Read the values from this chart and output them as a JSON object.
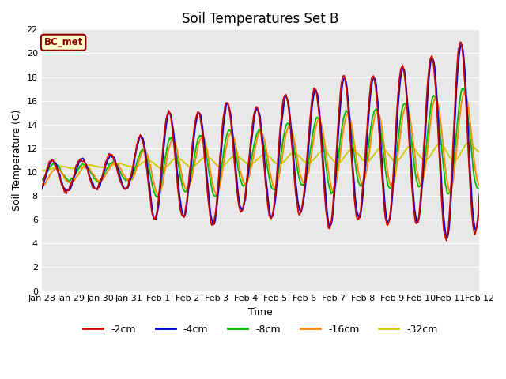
{
  "title": "Soil Temperatures Set B",
  "xlabel": "Time",
  "ylabel": "Soil Temperature (C)",
  "ylim": [
    0,
    22
  ],
  "yticks": [
    0,
    2,
    4,
    6,
    8,
    10,
    12,
    14,
    16,
    18,
    20,
    22
  ],
  "bg_color": "#e8e8e8",
  "fig_color": "#ffffff",
  "annotation_text": "BC_met",
  "annotation_bg": "#ffffcc",
  "annotation_border": "#8b0000",
  "series": {
    "-2cm": {
      "color": "#cc0000",
      "lw": 1.3
    },
    "-4cm": {
      "color": "#0000cc",
      "lw": 1.3
    },
    "-8cm": {
      "color": "#00bb00",
      "lw": 1.3
    },
    "-16cm": {
      "color": "#ff8800",
      "lw": 1.3
    },
    "-32cm": {
      "color": "#cccc00",
      "lw": 1.3
    }
  },
  "xtick_labels": [
    "Jan 28",
    "Jan 29",
    "Jan 30",
    "Jan 31",
    "Feb 1",
    "Feb 2",
    "Feb 3",
    "Feb 4",
    "Feb 5",
    "Feb 6",
    "Feb 7",
    "Feb 8",
    "Feb 9",
    "Feb 10",
    "Feb 11",
    "Feb 12"
  ],
  "n_points": 480,
  "time_days": 15
}
